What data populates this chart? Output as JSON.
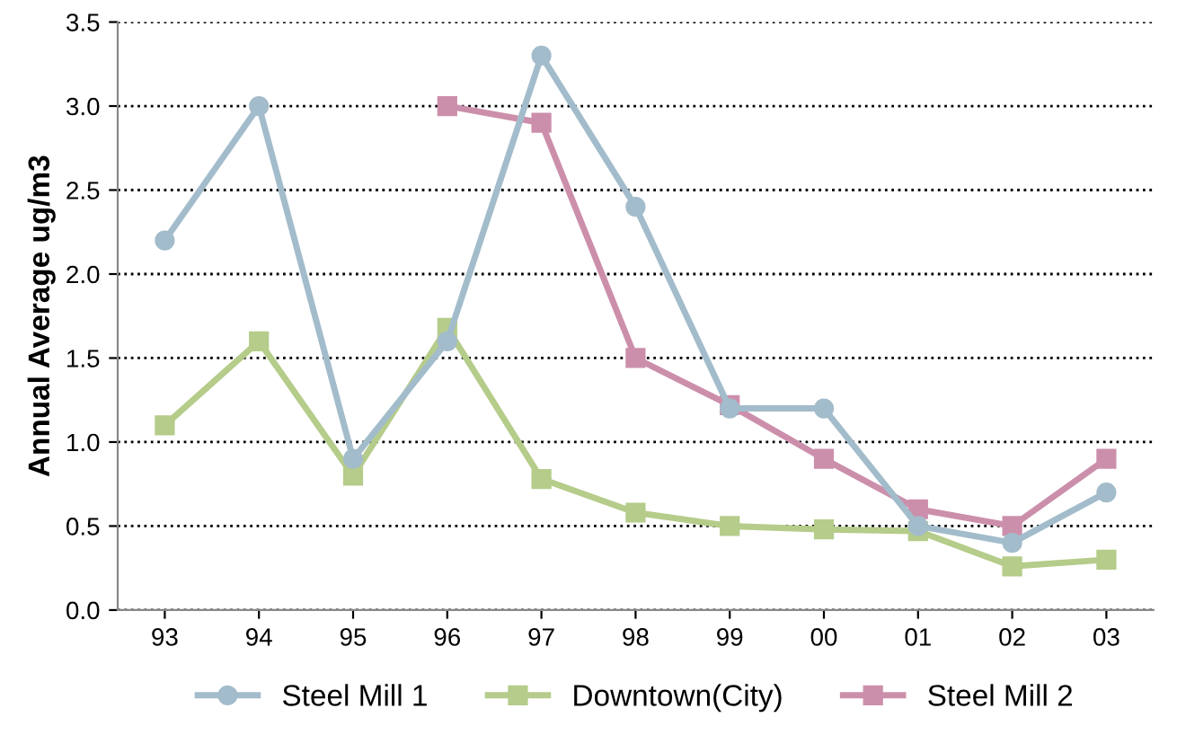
{
  "chart_data": {
    "type": "line",
    "ylabel": "Annual Average ug/m3",
    "categories": [
      "93",
      "94",
      "95",
      "96",
      "97",
      "98",
      "99",
      "00",
      "01",
      "02",
      "03"
    ],
    "series": [
      {
        "name": "Steel Mill 1",
        "color": "#a3bccb",
        "marker": "circle",
        "values": [
          2.2,
          3.0,
          0.9,
          1.6,
          3.3,
          2.4,
          1.2,
          1.2,
          0.5,
          0.4,
          0.7
        ]
      },
      {
        "name": "Downtown(City)",
        "color": "#b5cc8a",
        "marker": "square",
        "values": [
          1.1,
          1.6,
          0.8,
          1.68,
          0.78,
          0.58,
          0.5,
          0.48,
          0.47,
          0.26,
          0.3
        ]
      },
      {
        "name": "Steel Mill 2",
        "color": "#cc8fab",
        "marker": "square",
        "values": [
          null,
          null,
          null,
          3.0,
          2.9,
          1.5,
          1.22,
          0.9,
          0.6,
          0.5,
          0.9
        ]
      }
    ],
    "ylim": [
      0,
      3.5
    ],
    "yticks": [
      {
        "value": 0,
        "label": "0.0"
      },
      0.5,
      {
        "value": 1,
        "label": "1.0"
      },
      1.5,
      {
        "value": 2,
        "label": "2.0"
      },
      2.5,
      {
        "value": 3,
        "label": "3.0"
      },
      3.5
    ],
    "grid": "y",
    "legend": "bottom",
    "line_style": "solid"
  }
}
